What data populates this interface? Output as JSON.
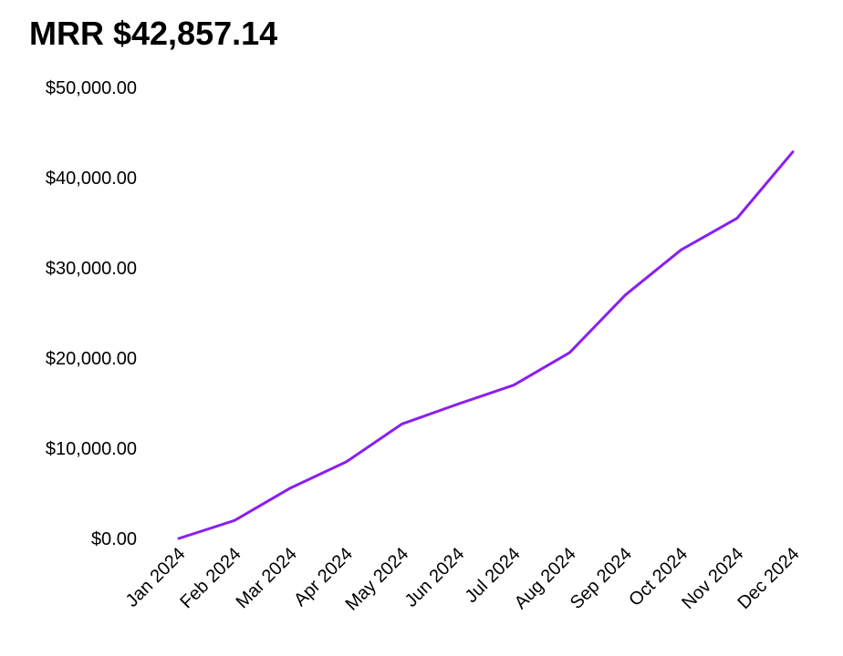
{
  "header": {
    "title": "MRR $42,857.14"
  },
  "colors": {
    "line": "#8a1ff0",
    "text": "#000000"
  },
  "chart_data": {
    "type": "line",
    "title": "MRR $42,857.14",
    "xlabel": "",
    "ylabel": "",
    "categories": [
      "Jan 2024",
      "Feb 2024",
      "Mar 2024",
      "Apr 2024",
      "May 2024",
      "Jun 2024",
      "Jul 2024",
      "Aug 2024",
      "Sep 2024",
      "Oct 2024",
      "Nov 2024",
      "Dec 2024"
    ],
    "series": [
      {
        "values": [
          0,
          2000,
          5600,
          8500,
          12700,
          14900,
          17000,
          20600,
          27000,
          32000,
          35500,
          42857.14
        ]
      }
    ],
    "ylim": [
      0,
      50000
    ],
    "yticks": [
      0,
      10000,
      20000,
      30000,
      40000,
      50000
    ],
    "ytick_labels": [
      "$0.00",
      "$10,000.00",
      "$20,000.00",
      "$30,000.00",
      "$40,000.00",
      "$50,000.00"
    ],
    "grid": false,
    "legend": "none"
  }
}
